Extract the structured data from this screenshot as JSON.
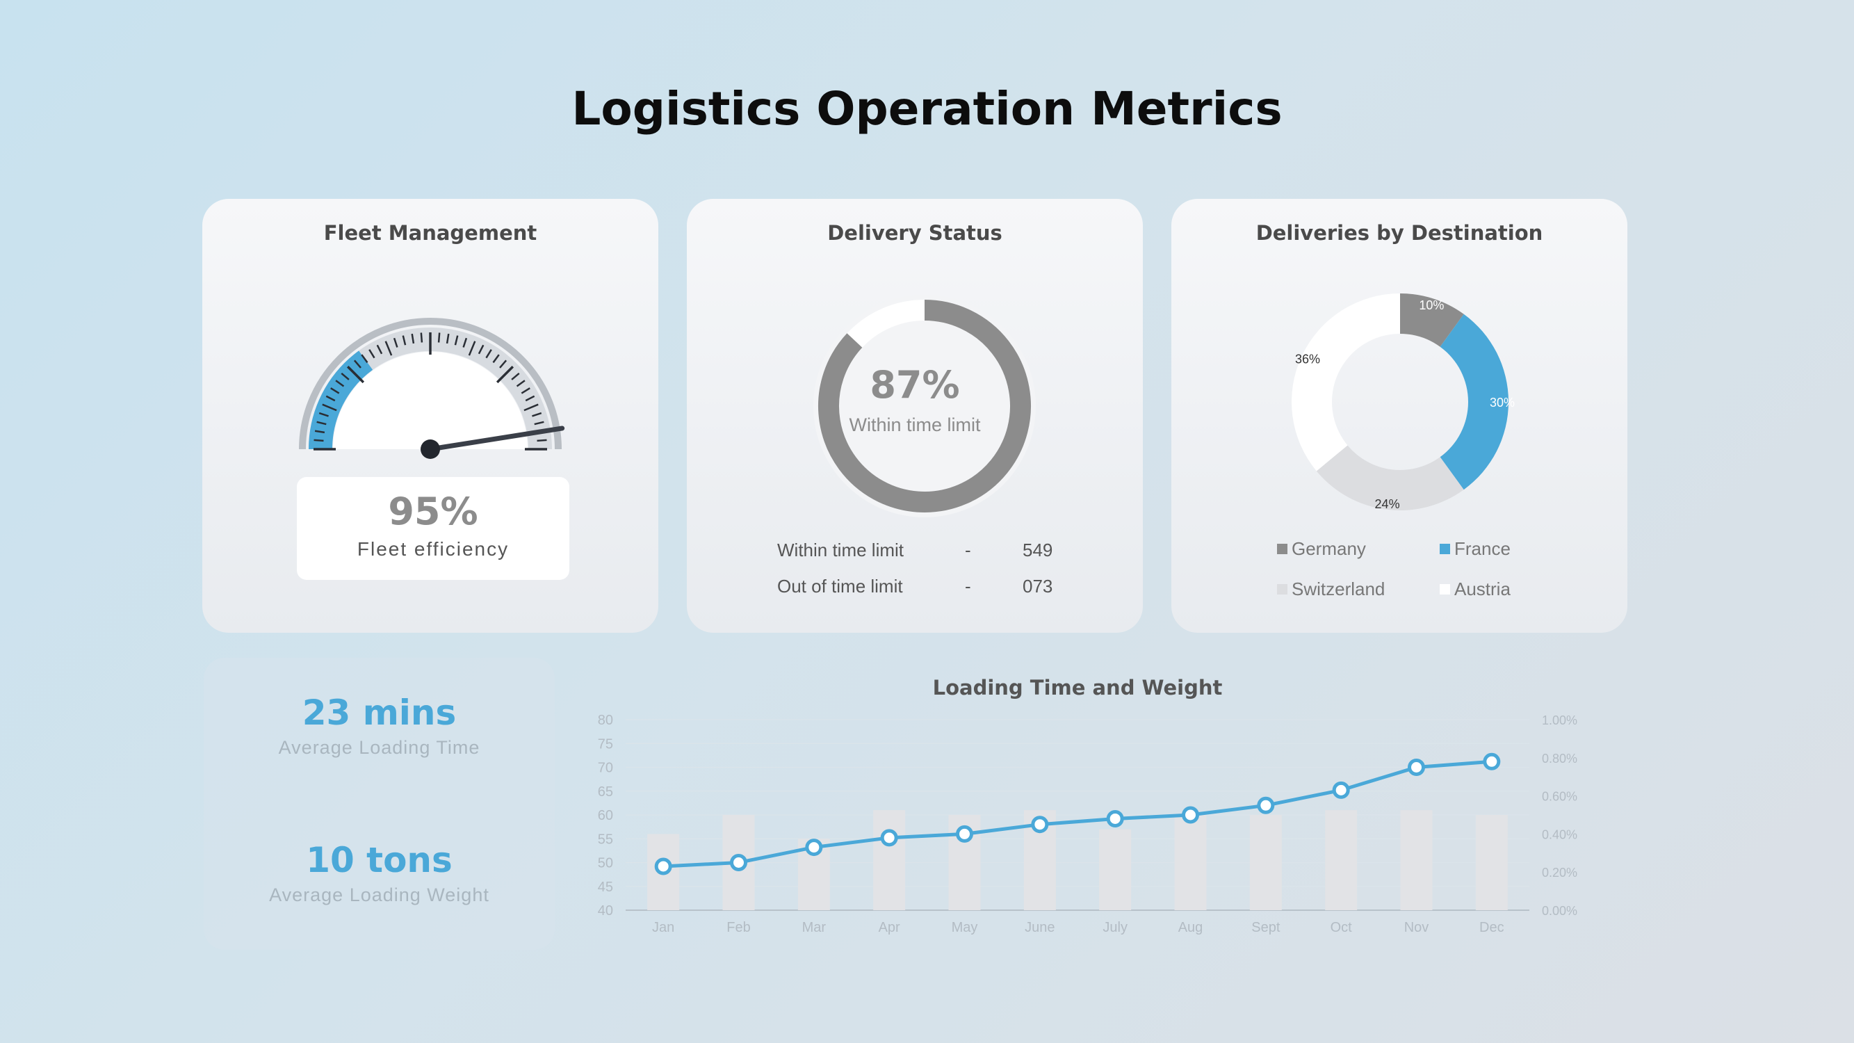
{
  "page_title": "Logistics Operation Metrics",
  "fleet": {
    "title": "Fleet Management",
    "efficiency_value": "95%",
    "efficiency_label": "Fleet efficiency"
  },
  "delivery_status": {
    "title": "Delivery Status",
    "center_value": "87%",
    "center_label": "Within time limit",
    "rows": [
      {
        "label": "Within time limit",
        "sep": "-",
        "value": "549"
      },
      {
        "label": "Out of time limit",
        "sep": "-",
        "value": "073"
      }
    ]
  },
  "destinations": {
    "title": "Deliveries by Destination",
    "legend": [
      "Germany",
      "France",
      "Switzerland",
      "Austria"
    ]
  },
  "kpis": [
    {
      "value": "23 mins",
      "label": "Average Loading Time"
    },
    {
      "value": "10 tons",
      "label": "Average Loading Weight"
    }
  ],
  "chart_data": [
    {
      "type": "gauge",
      "title": "Fleet Management",
      "value": 95,
      "range": [
        0,
        100
      ],
      "highlight_fraction": 0.3,
      "colors": {
        "highlight": "#4aa8d8",
        "track": "#d7dbe0",
        "needle": "#3a3f48"
      }
    },
    {
      "type": "pie",
      "title": "Delivery Status",
      "values": [
        87,
        13
      ],
      "labels": [
        "Within time limit",
        "Out of time limit"
      ],
      "colors": [
        "#8c8c8c",
        "#ffffff"
      ]
    },
    {
      "type": "pie",
      "title": "Deliveries by Destination",
      "categories": [
        "Germany",
        "France",
        "Switzerland",
        "Austria"
      ],
      "values": [
        10,
        30,
        24,
        36
      ],
      "data_labels": [
        "10%",
        "30%",
        "24%",
        "36%"
      ],
      "colors": [
        "#8c8c8c",
        "#4aa8d8",
        "#dcdde0",
        "#ffffff"
      ],
      "legend": "bottom"
    },
    {
      "type": "bar",
      "title": "Loading Time and Weight",
      "categories": [
        "Jan",
        "Feb",
        "Mar",
        "Apr",
        "May",
        "June",
        "July",
        "Aug",
        "Sept",
        "Oct",
        "Nov",
        "Dec"
      ],
      "series": [
        {
          "type": "bar",
          "axis": "left",
          "values": [
            56,
            60,
            55,
            61,
            60,
            61,
            57,
            60,
            60,
            61,
            61,
            60
          ],
          "color": "#e2e3e6"
        },
        {
          "type": "line",
          "axis": "right",
          "values": [
            0.23,
            0.25,
            0.33,
            0.38,
            0.4,
            0.45,
            0.48,
            0.5,
            0.55,
            0.63,
            0.75,
            0.78
          ],
          "color": "#4aa8d8"
        }
      ],
      "y_left": {
        "lim": [
          40,
          80
        ],
        "ticks": [
          40,
          45,
          50,
          55,
          60,
          65,
          70,
          75,
          80
        ]
      },
      "y_right": {
        "lim": [
          0,
          1
        ],
        "ticks": [
          "0.00%",
          "0.20%",
          "0.40%",
          "0.60%",
          "0.80%",
          "1.00%"
        ]
      },
      "grid": true
    }
  ]
}
